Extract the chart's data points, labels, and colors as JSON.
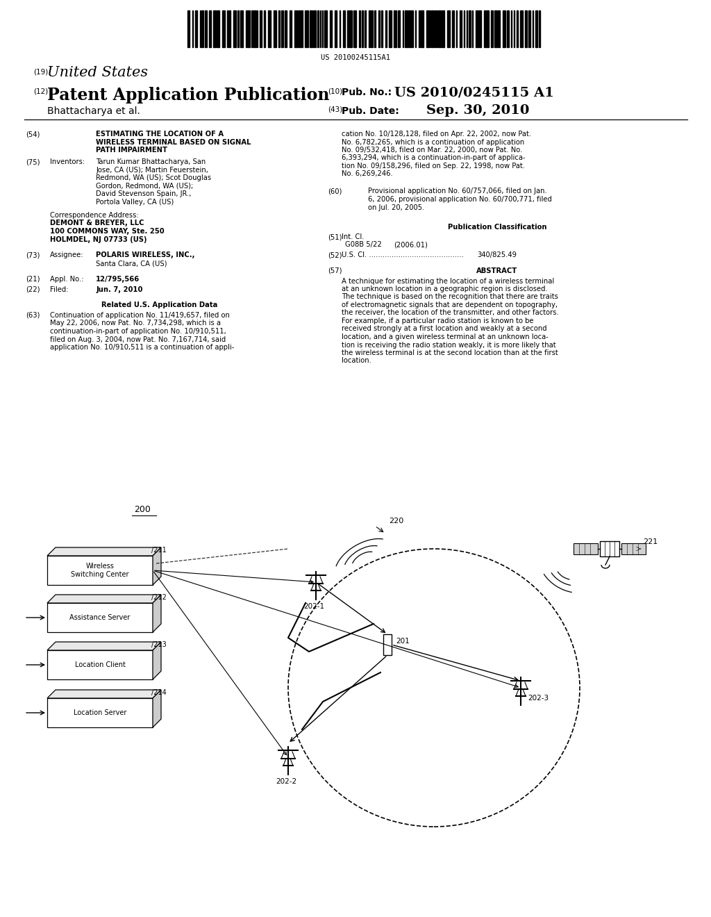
{
  "background_color": "#ffffff",
  "barcode_text": "US 20100245115A1",
  "header": {
    "number19": "(19)",
    "country": "United States",
    "number12": "(12)",
    "type": "Patent Application Publication",
    "number10": "(10)",
    "pub_no_label": "Pub. No.:",
    "pub_no": "US 2010/0245115 A1",
    "author": "Bhattacharya et al.",
    "number43": "(43)",
    "pub_date_label": "Pub. Date:",
    "pub_date": "Sep. 30, 2010"
  },
  "left_col": {
    "n54": "(54)",
    "title_line1": "ESTIMATING THE LOCATION OF A",
    "title_line2": "WIRELESS TERMINAL BASED ON SIGNAL",
    "title_line3": "PATH IMPAIRMENT",
    "n75": "(75)",
    "inventors_label": "Inventors:",
    "corr_address_label": "Correspondence Address:",
    "n73": "(73)",
    "assignee_label": "Assignee:",
    "n21": "(21)",
    "appl_label": "Appl. No.:",
    "appl_no": "12/795,566",
    "n22": "(22)",
    "filed_label": "Filed:",
    "filed_date": "Jun. 7, 2010",
    "related_header": "Related U.S. Application Data",
    "n63": "(63)"
  },
  "right_col": {
    "n60": "(60)",
    "pub_class_header": "Publication Classification",
    "n51": "(51)",
    "int_cl_label": "Int. Cl.",
    "int_cl": "G08B 5/22",
    "int_cl_year": "(2006.01)",
    "n52": "(52)",
    "us_cl_dots": "U.S. Cl. ..........................................",
    "us_cl": "340/825.49",
    "n57": "(57)",
    "abstract_header": "ABSTRACT"
  },
  "diagram": {
    "label_200": "200",
    "label_220": "220",
    "label_221": "221",
    "label_211": "211",
    "label_212": "212",
    "label_213": "213",
    "label_214": "214",
    "label_201": "201",
    "label_202_1": "202-1",
    "label_202_2": "202-2",
    "label_202_3": "202-3"
  }
}
